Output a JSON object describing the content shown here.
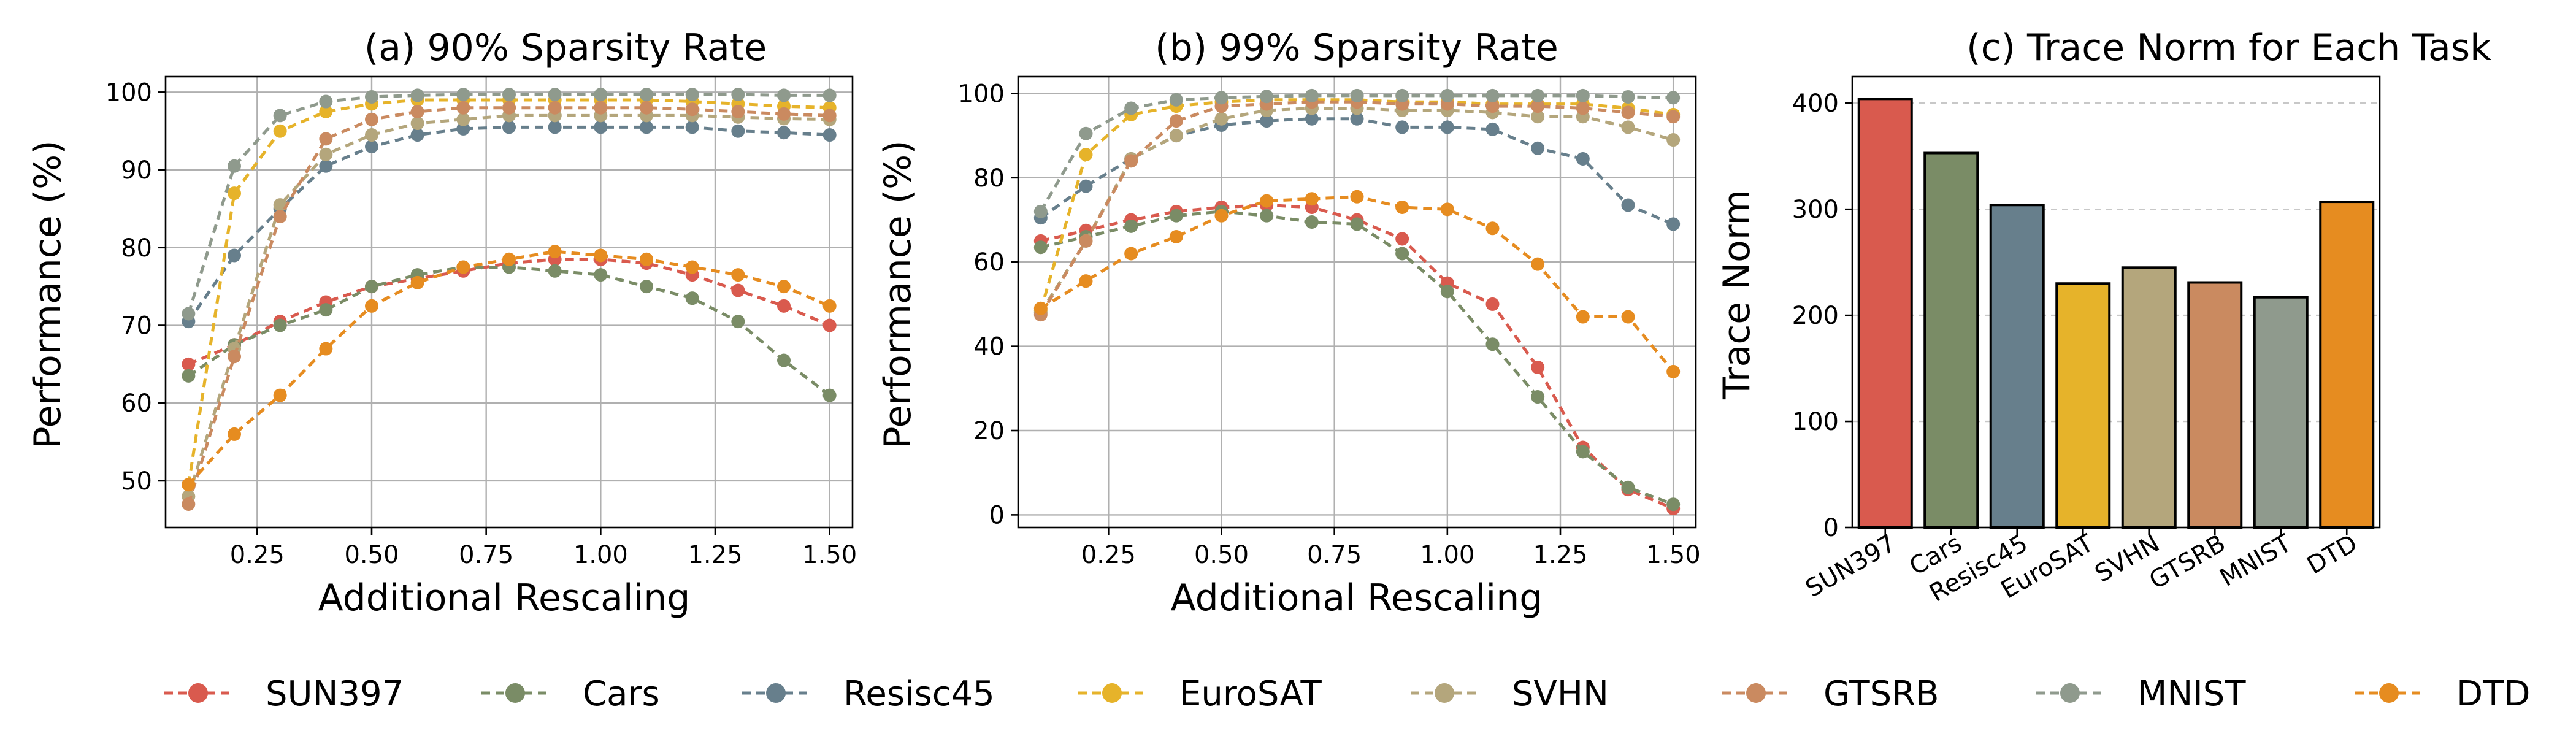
{
  "chart_data": [
    {
      "type": "line",
      "title": "(a) 90% Sparsity Rate",
      "xlabel": "Additional Rescaling",
      "ylabel": "Performance (%)",
      "xlim": [
        0.05,
        1.55
      ],
      "ylim": [
        44,
        102
      ],
      "xticks": [
        "0.25",
        "0.50",
        "0.75",
        "1.00",
        "1.25",
        "1.50"
      ],
      "yticks": [
        "50",
        "60",
        "70",
        "80",
        "90",
        "100"
      ],
      "grid": true,
      "x": [
        0.1,
        0.2,
        0.3,
        0.4,
        0.5,
        0.6,
        0.7,
        0.8,
        0.9,
        1.0,
        1.1,
        1.2,
        1.3,
        1.4,
        1.5
      ],
      "series": [
        {
          "name": "SUN397",
          "values": [
            65.0,
            67.5,
            70.5,
            73.0,
            75.0,
            76.0,
            77.0,
            78.0,
            78.5,
            78.5,
            78.0,
            76.5,
            74.5,
            72.5,
            70.0
          ]
        },
        {
          "name": "Cars",
          "values": [
            63.5,
            67.5,
            70.0,
            72.0,
            75.0,
            76.5,
            77.5,
            77.5,
            77.0,
            76.5,
            75.0,
            73.5,
            70.5,
            65.5,
            61.0
          ]
        },
        {
          "name": "Resisc45",
          "values": [
            70.5,
            79.0,
            85.0,
            90.5,
            93.0,
            94.5,
            95.3,
            95.5,
            95.5,
            95.5,
            95.5,
            95.5,
            95.0,
            94.8,
            94.5
          ]
        },
        {
          "name": "EuroSAT",
          "values": [
            49.5,
            87.0,
            95.0,
            97.5,
            98.5,
            99.0,
            99.0,
            99.0,
            99.0,
            99.0,
            99.0,
            98.8,
            98.5,
            98.2,
            98.0
          ]
        },
        {
          "name": "SVHN",
          "values": [
            48.0,
            67.0,
            85.5,
            92.0,
            94.5,
            96.0,
            96.5,
            97.0,
            97.0,
            97.0,
            97.0,
            97.0,
            96.8,
            96.6,
            96.5
          ]
        },
        {
          "name": "GTSRB",
          "values": [
            47.0,
            66.0,
            84.0,
            94.0,
            96.5,
            97.5,
            98.0,
            98.0,
            98.0,
            98.0,
            98.0,
            97.8,
            97.5,
            97.2,
            97.0
          ]
        },
        {
          "name": "MNIST",
          "values": [
            71.5,
            90.5,
            97.0,
            98.8,
            99.4,
            99.6,
            99.7,
            99.7,
            99.7,
            99.7,
            99.7,
            99.7,
            99.7,
            99.6,
            99.6
          ]
        },
        {
          "name": "DTD",
          "values": [
            49.5,
            56.0,
            61.0,
            67.0,
            72.5,
            75.5,
            77.5,
            78.5,
            79.5,
            79.0,
            78.5,
            77.5,
            76.5,
            75.0,
            72.5
          ]
        }
      ]
    },
    {
      "type": "line",
      "title": "(b) 99% Sparsity Rate",
      "xlabel": "Additional Rescaling",
      "ylabel": "Performance (%)",
      "xlim": [
        0.05,
        1.55
      ],
      "ylim": [
        -3,
        104
      ],
      "xticks": [
        "0.25",
        "0.50",
        "0.75",
        "1.00",
        "1.25",
        "1.50"
      ],
      "yticks": [
        "0",
        "20",
        "40",
        "60",
        "80",
        "100"
      ],
      "grid": true,
      "x": [
        0.1,
        0.2,
        0.3,
        0.4,
        0.5,
        0.6,
        0.7,
        0.8,
        0.9,
        1.0,
        1.1,
        1.2,
        1.3,
        1.4,
        1.5
      ],
      "series": [
        {
          "name": "SUN397",
          "values": [
            65.0,
            67.5,
            70.0,
            72.0,
            73.0,
            73.5,
            73.0,
            70.0,
            65.5,
            55.0,
            50.0,
            35.0,
            16.0,
            6.0,
            1.5
          ]
        },
        {
          "name": "Cars",
          "values": [
            63.5,
            66.0,
            68.5,
            71.0,
            72.0,
            71.0,
            69.5,
            69.0,
            62.0,
            53.0,
            40.5,
            28.0,
            15.0,
            6.5,
            2.5
          ]
        },
        {
          "name": "Resisc45",
          "values": [
            70.5,
            78.0,
            84.5,
            90.0,
            92.5,
            93.5,
            94.0,
            94.0,
            92.0,
            92.0,
            91.5,
            87.0,
            84.5,
            73.5,
            69.0
          ]
        },
        {
          "name": "EuroSAT",
          "values": [
            48.5,
            85.5,
            95.0,
            97.0,
            98.0,
            98.5,
            98.5,
            98.5,
            98.0,
            98.0,
            97.5,
            97.5,
            97.5,
            96.5,
            95.0
          ]
        },
        {
          "name": "SVHN",
          "values": [
            48.0,
            65.0,
            84.5,
            90.0,
            94.0,
            96.0,
            96.5,
            96.5,
            96.0,
            96.0,
            95.5,
            94.5,
            94.5,
            92.0,
            89.0
          ]
        },
        {
          "name": "GTSRB",
          "values": [
            47.5,
            65.0,
            84.0,
            93.5,
            97.0,
            97.5,
            98.0,
            98.0,
            97.5,
            97.5,
            97.0,
            97.0,
            96.5,
            95.5,
            94.5
          ]
        },
        {
          "name": "MNIST",
          "values": [
            72.0,
            90.5,
            96.5,
            98.5,
            99.0,
            99.3,
            99.5,
            99.5,
            99.5,
            99.5,
            99.5,
            99.5,
            99.5,
            99.2,
            99.0
          ]
        },
        {
          "name": "DTD",
          "values": [
            49.0,
            55.5,
            62.0,
            66.0,
            71.0,
            74.5,
            75.0,
            75.5,
            73.0,
            72.5,
            68.0,
            59.5,
            47.0,
            47.0,
            34.0
          ]
        }
      ]
    },
    {
      "type": "bar",
      "title": "(c) Trace Norm for Each Task",
      "xlabel": "",
      "ylabel": "Trace Norm",
      "ylim": [
        0,
        425
      ],
      "yticks": [
        "0",
        "100",
        "200",
        "300",
        "400"
      ],
      "grid": true,
      "categories": [
        "SUN397",
        "Cars",
        "Resisc45",
        "EuroSAT",
        "SVHN",
        "GTSRB",
        "MNIST",
        "DTD"
      ],
      "values": [
        404,
        353,
        304,
        230,
        245,
        231,
        217,
        307
      ]
    }
  ],
  "legend": {
    "placement": "bottom",
    "entries": [
      "SUN397",
      "Cars",
      "Resisc45",
      "EuroSAT",
      "SVHN",
      "GTSRB",
      "MNIST",
      "DTD"
    ]
  },
  "colors": {
    "SUN397": "#d95a4e",
    "Cars": "#7a8c66",
    "Resisc45": "#677f8c",
    "EuroSAT": "#e6b32a",
    "SVHN": "#b4a67c",
    "GTSRB": "#ca8a60",
    "MNIST": "#8f9a8d",
    "DTD": "#e68c20"
  }
}
